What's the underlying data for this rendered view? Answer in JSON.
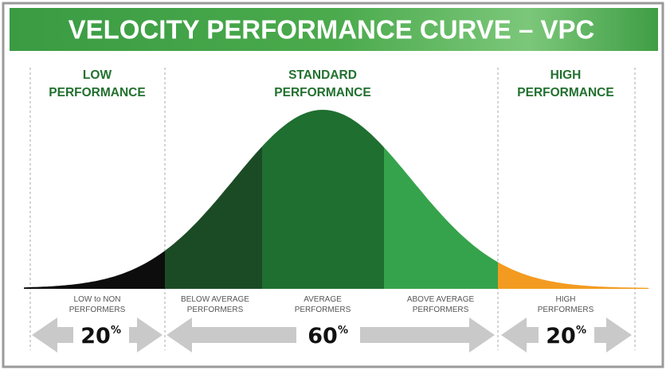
{
  "header": {
    "title": "VELOCITY PERFORMANCE CURVE – VPC"
  },
  "sections": [
    {
      "lines": [
        "LOW",
        "PERFORMANCE"
      ]
    },
    {
      "lines": [
        "STANDARD",
        "PERFORMANCE"
      ]
    },
    {
      "lines": [
        "HIGH",
        "PERFORMANCE"
      ]
    }
  ],
  "segments": [
    {
      "lines": [
        "LOW to NON",
        "PERFORMERS"
      ]
    },
    {
      "lines": [
        "BELOW AVERAGE",
        "PERFORMERS"
      ]
    },
    {
      "lines": [
        "AVERAGE",
        "PERFORMERS"
      ]
    },
    {
      "lines": [
        "ABOVE AVERAGE",
        "PERFORMERS"
      ]
    },
    {
      "lines": [
        "HIGH",
        "PERFORMERS"
      ]
    }
  ],
  "shares": [
    {
      "number": "20",
      "unit": "%"
    },
    {
      "number": "60",
      "unit": "%"
    },
    {
      "number": "20",
      "unit": "%"
    }
  ]
}
